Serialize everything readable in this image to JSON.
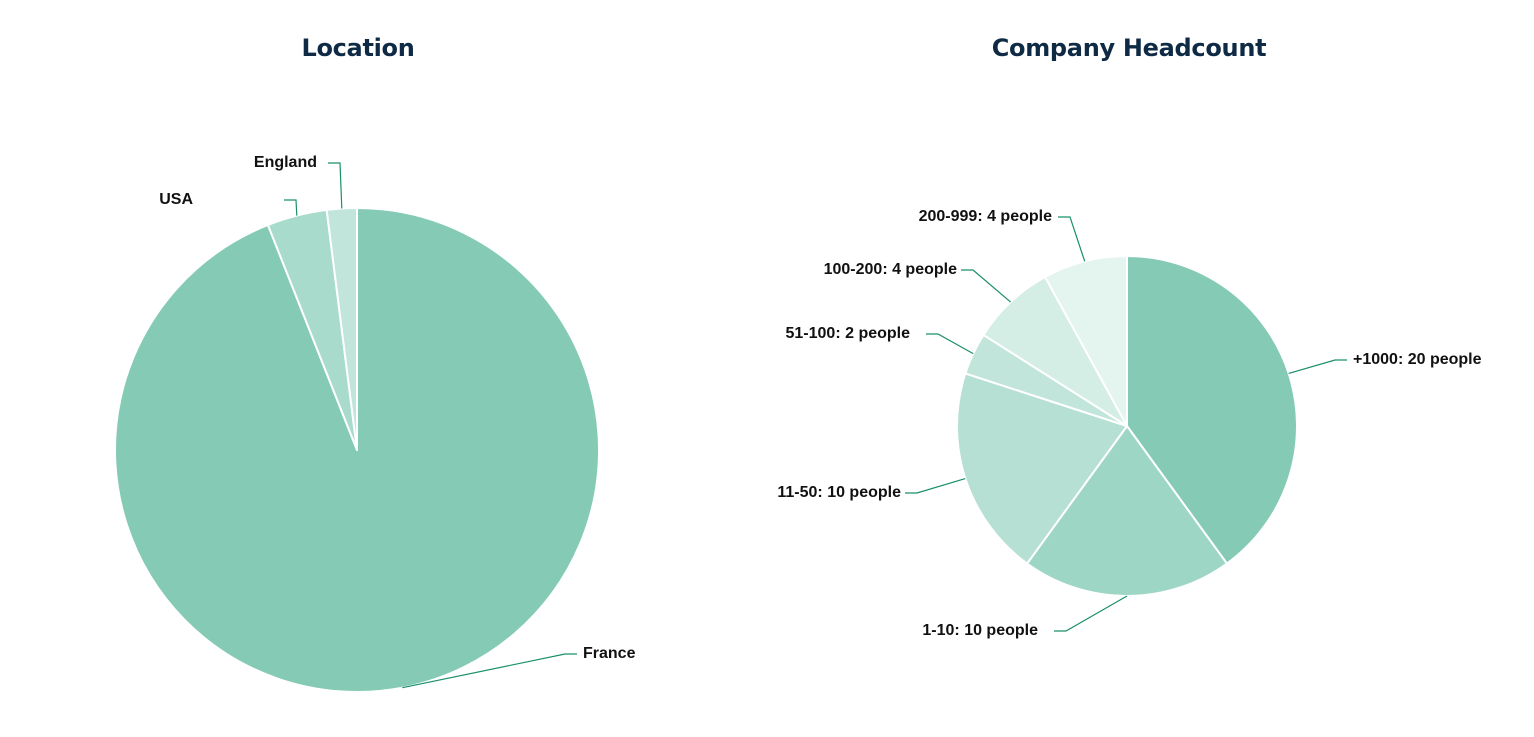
{
  "chart_data": [
    {
      "type": "pie",
      "title": "Location",
      "start_angle_deg": 0,
      "colors": [
        "#84cab4",
        "#a8dbcb",
        "#c1e5da"
      ],
      "slices": [
        {
          "label": "France",
          "value": 94
        },
        {
          "label": "USA",
          "value": 4
        },
        {
          "label": "England",
          "value": 2
        }
      ]
    },
    {
      "type": "pie",
      "title": "Company Headcount",
      "start_angle_deg": 0,
      "colors": [
        "#84cab4",
        "#9ed6c5",
        "#b6e0d4",
        "#c1e5da",
        "#d4eee6",
        "#e4f4ef"
      ],
      "slices": [
        {
          "label": "+1000: 20 people",
          "value": 20
        },
        {
          "label": "1-10: 10 people",
          "value": 10
        },
        {
          "label": "11-50: 10 people",
          "value": 10
        },
        {
          "label": "51-100: 2 people",
          "value": 2
        },
        {
          "label": "100-200: 4 people",
          "value": 4
        },
        {
          "label": "200-999: 4 people",
          "value": 4
        }
      ]
    }
  ]
}
